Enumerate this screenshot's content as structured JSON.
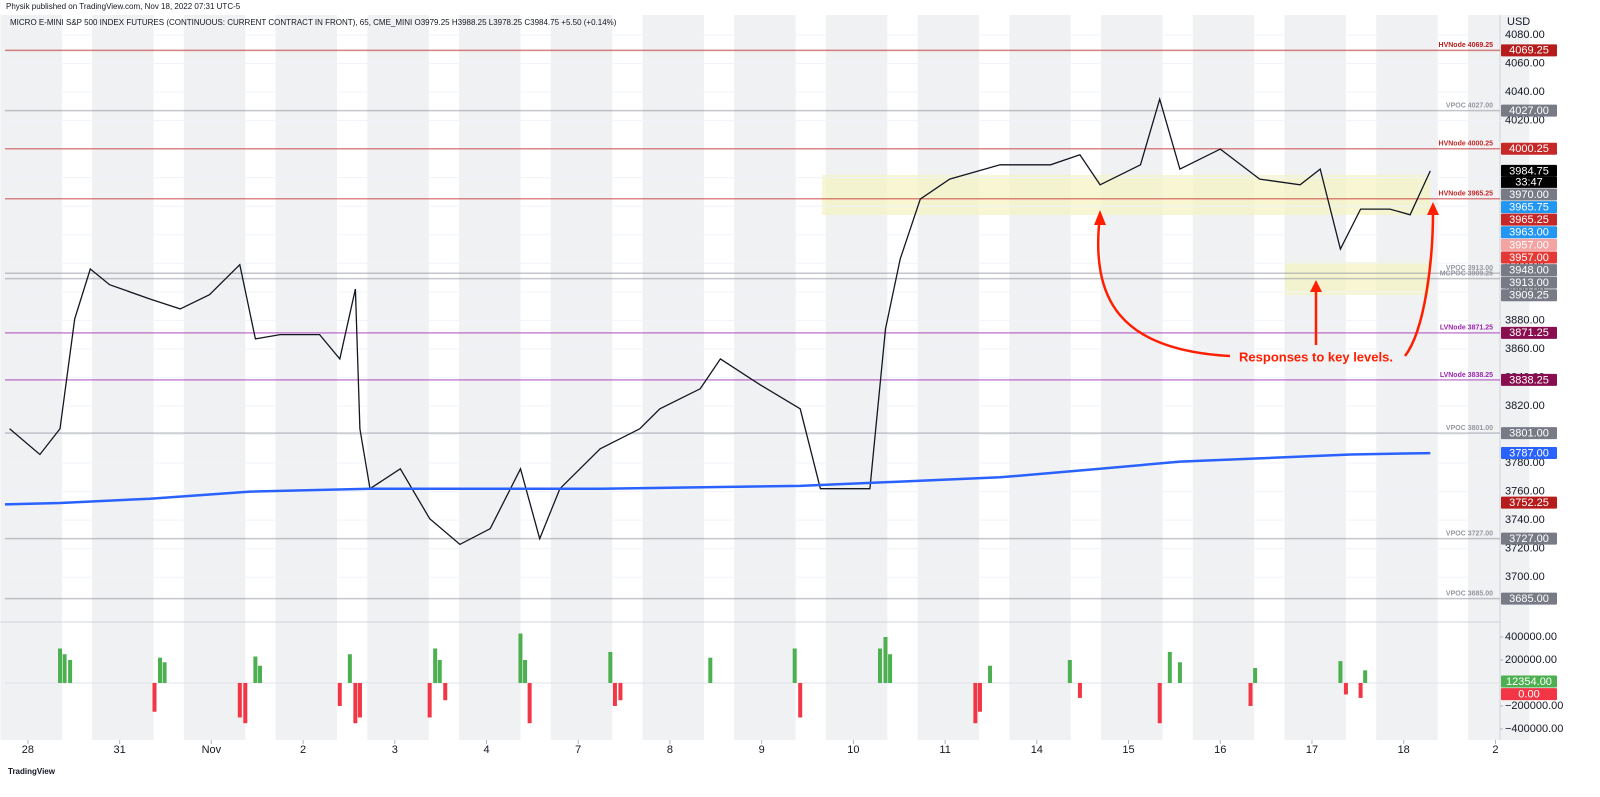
{
  "header": {
    "published": "Physik published on TradingView.com, Nov 18, 2022 07:31 UTC-5",
    "footer": "TradingView"
  },
  "chart_data": [
    {
      "type": "line",
      "title": "MICRO E-MINI S&P 500 INDEX FUTURES (CONTINUOUS: CURRENT CONTRACT IN FRONT), 65, CME_MINI  O3979.25  H3988.25  L3978.25  C3984.75  +5.50 (+0.14%)",
      "currency": "USD",
      "annotation": "Responses to key levels.",
      "xlim": [
        -0.25,
        16.05
      ],
      "ylim": [
        3670,
        4094
      ],
      "yticks": [
        {
          "value": 3700,
          "label": "3700.00"
        },
        {
          "value": 3720,
          "label": "3720.00"
        },
        {
          "value": 3740,
          "label": "3740.00"
        },
        {
          "value": 3760,
          "label": "3760.00"
        },
        {
          "value": 3780,
          "label": "3780.00"
        },
        {
          "value": 3800,
          "label": "3800.00"
        },
        {
          "value": 3820,
          "label": "3820.00"
        },
        {
          "value": 3840,
          "label": "3840.00"
        },
        {
          "value": 3860,
          "label": "3860.00"
        },
        {
          "value": 3880,
          "label": "3880.00"
        },
        {
          "value": 3900,
          "label": "3900.00"
        },
        {
          "value": 3920,
          "label": "3920.00"
        },
        {
          "value": 3940,
          "label": "3940.00"
        },
        {
          "value": 3960,
          "label": "3960.00"
        },
        {
          "value": 3980,
          "label": "3980.00"
        },
        {
          "value": 4000,
          "label": "4000.00"
        },
        {
          "value": 4020,
          "label": "4020.00"
        },
        {
          "value": 4040,
          "label": "4040.00"
        },
        {
          "value": 4060,
          "label": "4060.00"
        },
        {
          "value": 4080,
          "label": "4080.00"
        }
      ],
      "series": [
        {
          "color": "#131722",
          "x": [
            -0.2,
            0.13,
            0.35,
            0.51,
            0.68,
            0.89,
            1.33,
            1.66,
            1.98,
            2.31,
            2.48,
            2.75,
            3.18,
            3.4,
            3.57,
            3.62,
            3.73,
            4.06,
            4.38,
            4.71,
            5.04,
            5.37,
            5.58,
            5.8,
            6.24,
            6.67,
            6.89,
            7.33,
            7.55,
            7.98,
            8.42,
            8.64,
            9.18,
            9.35,
            9.51,
            9.73,
            10.05,
            10.6,
            11.15,
            11.47,
            11.69,
            12.13,
            12.34,
            12.56,
            13.0,
            13.43,
            13.87,
            14.09,
            14.31,
            14.53,
            14.85,
            15.07,
            15.29
          ],
          "values": [
            3804,
            3786,
            3804,
            3881,
            3916,
            3905,
            3895,
            3888,
            3898,
            3919,
            3867,
            3870,
            3870,
            3853,
            3902,
            3804,
            3762,
            3776,
            3741,
            3723,
            3734,
            3776,
            3727,
            3762,
            3790,
            3804,
            3818,
            3832,
            3853,
            3835,
            3818,
            3762,
            3762,
            3874,
            3923,
            3965,
            3979,
            3989,
            3989,
            3996,
            3975,
            3989,
            4035,
            3986,
            4000,
            3979,
            3975,
            3986,
            3930,
            3958,
            3958,
            3954,
            3984.75
          ]
        },
        {
          "color": "#2962ff",
          "x": [
            -0.25,
            0.35,
            1.33,
            2.42,
            3.73,
            6.24,
            8.42,
            9.51,
            10.6,
            11.69,
            12.56,
            13.32,
            14.42,
            15.29
          ],
          "values": [
            3751,
            3752,
            3755,
            3760,
            3762,
            3762,
            3764,
            3767,
            3770,
            3776,
            3781,
            3783,
            3786,
            3787
          ]
        }
      ],
      "levels": [
        {
          "label": "HVNode 4069.25",
          "value": 4069.25,
          "color": "#b71c1c"
        },
        {
          "label": "VPOC 4027.00",
          "value": 4027,
          "color": "#9598a1"
        },
        {
          "label": "HVNode 4000.25",
          "value": 4000.25,
          "color": "#c62828"
        },
        {
          "label": "HVNode 3965.25",
          "value": 3965.25,
          "color": "#c62828"
        },
        {
          "label": "VPOC 3913.00",
          "value": 3913,
          "color": "#9598a1"
        },
        {
          "label": "MCPOC 3909.25",
          "value": 3909.25,
          "color": "#9598a1"
        },
        {
          "label": "LVNode 3871.25",
          "value": 3871.25,
          "color": "#9c27b0"
        },
        {
          "label": "LVNode 3838.25",
          "value": 3838.25,
          "color": "#9c27b0"
        },
        {
          "label": "VPOC 3801.00",
          "value": 3801,
          "color": "#9598a1"
        },
        {
          "label": "VPOC 3727.00",
          "value": 3727,
          "color": "#9598a1"
        },
        {
          "label": "VPOC 3685.00",
          "value": 3685,
          "color": "#9598a1"
        }
      ],
      "price_tags": [
        {
          "value": 4069.25,
          "label": "4069.25",
          "color": "#b71c1c"
        },
        {
          "value": 4027,
          "label": "4027.00",
          "color": "#787b86"
        },
        {
          "value": 4000.25,
          "label": "4000.25",
          "color": "#c62828"
        },
        {
          "value": 3984.75,
          "label": "3984.75",
          "color": "#000000",
          "countdown": "33:47"
        },
        {
          "value": 3970,
          "label": "3970.00",
          "color": "#787b86"
        },
        {
          "value": 3965.75,
          "label": "3965.75",
          "color": "#2196f3"
        },
        {
          "value": 3965.25,
          "label": "3965.25",
          "color": "#c62828"
        },
        {
          "value": 3963,
          "label": "3963.00",
          "color": "#2196f3"
        },
        {
          "value": 3957,
          "label": "3957.00",
          "color": "#f4a3a3"
        },
        {
          "value": 3957,
          "label": "3957.00",
          "color": "#e53935"
        },
        {
          "value": 3948,
          "label": "3948.00",
          "color": "#787b86"
        },
        {
          "value": 3913,
          "label": "3913.00",
          "color": "#787b86"
        },
        {
          "value": 3909.25,
          "label": "3909.25",
          "color": "#787b86"
        },
        {
          "value": 3871.25,
          "label": "3871.25",
          "color": "#880e4f"
        },
        {
          "value": 3838.25,
          "label": "3838.25",
          "color": "#880e4f"
        },
        {
          "value": 3801,
          "label": "3801.00",
          "color": "#787b86"
        },
        {
          "value": 3787,
          "label": "3787.00",
          "color": "#2962ff"
        },
        {
          "value": 3752.25,
          "label": "3752.25",
          "color": "#b71c1c"
        },
        {
          "value": 3727,
          "label": "3727.00",
          "color": "#787b86"
        },
        {
          "value": 3685,
          "label": "3685.00",
          "color": "#787b86"
        }
      ]
    },
    {
      "type": "bar",
      "xlim": [
        -0.25,
        16.05
      ],
      "ylim": [
        -496000,
        513000
      ],
      "yticks": [
        {
          "value": 400000,
          "label": "400000.00"
        },
        {
          "value": 200000,
          "label": "200000.00"
        },
        {
          "value": -200000,
          "label": "−200000.00"
        },
        {
          "value": -400000,
          "label": "−400000.00"
        }
      ],
      "xticks": [
        {
          "value": 0,
          "label": "28"
        },
        {
          "value": 1,
          "label": "31"
        },
        {
          "value": 2,
          "label": "Nov"
        },
        {
          "value": 3,
          "label": "2"
        },
        {
          "value": 4,
          "label": "3"
        },
        {
          "value": 5,
          "label": "4"
        },
        {
          "value": 6,
          "label": "7"
        },
        {
          "value": 7,
          "label": "8"
        },
        {
          "value": 8,
          "label": "9"
        },
        {
          "value": 9,
          "label": "10"
        },
        {
          "value": 10,
          "label": "11"
        },
        {
          "value": 11,
          "label": "14"
        },
        {
          "value": 12,
          "label": "15"
        },
        {
          "value": 13,
          "label": "16"
        },
        {
          "value": 14,
          "label": "17"
        },
        {
          "value": 15,
          "label": "18"
        },
        {
          "value": 16,
          "label": "2"
        }
      ],
      "pos_color": "#4caf50",
      "neg_color": "#f23645",
      "x": [
        0.35,
        0.4,
        0.46,
        1.38,
        1.44,
        1.49,
        2.31,
        2.37,
        2.48,
        2.53,
        3.4,
        3.51,
        3.57,
        3.62,
        4.38,
        4.44,
        4.49,
        4.55,
        5.37,
        5.42,
        5.47,
        6.35,
        6.4,
        6.46,
        7.44,
        8.36,
        8.42,
        9.29,
        9.35,
        9.4,
        10.33,
        10.38,
        10.49,
        11.36,
        11.47,
        12.34,
        12.45,
        12.56,
        13.33,
        13.38,
        14.31,
        14.37,
        14.53,
        14.58
      ],
      "values": [
        300000,
        250000,
        200000,
        -250000,
        220000,
        180000,
        -300000,
        -350000,
        230000,
        150000,
        -200000,
        250000,
        -350000,
        -300000,
        -300000,
        300000,
        200000,
        -150000,
        430000,
        200000,
        -350000,
        270000,
        -200000,
        -150000,
        220000,
        300000,
        -300000,
        300000,
        400000,
        250000,
        -350000,
        -250000,
        150000,
        200000,
        -130000,
        -350000,
        270000,
        180000,
        -200000,
        130000,
        190000,
        -100000,
        -130000,
        110000
      ],
      "tags": [
        {
          "value": 12354,
          "label": "12354.00",
          "color": "#4caf50"
        },
        {
          "value": 0,
          "label": "0.00",
          "color": "#f23645"
        }
      ]
    }
  ]
}
